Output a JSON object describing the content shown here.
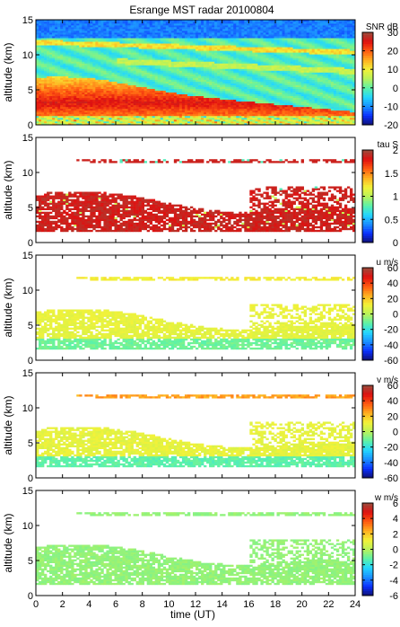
{
  "figure": {
    "title": "Esrange MST radar 20100804",
    "xlabel": "time (UT)"
  },
  "colors": {
    "colormap": [
      "#101070",
      "#0a2fff",
      "#1a8fff",
      "#22d6ff",
      "#5cf2a8",
      "#b8f25a",
      "#f2f238",
      "#ffb020",
      "#ff5a10",
      "#e01010",
      "#9a4a3a"
    ]
  },
  "chart_data": [
    {
      "type": "heatmap",
      "name": "SNR",
      "ylabel": "altitude (km)",
      "xlim": [
        0,
        24
      ],
      "ylim": [
        0,
        15
      ],
      "xticks": [
        0,
        2,
        4,
        6,
        8,
        10,
        12,
        14,
        16,
        18,
        20,
        22,
        24
      ],
      "yticks": [
        0,
        5,
        10,
        15
      ],
      "colorbar": {
        "label": "SNR dB",
        "range": [
          -20,
          30
        ],
        "ticks": [
          -20,
          -10,
          0,
          10,
          20,
          30
        ]
      }
    },
    {
      "type": "heatmap",
      "name": "tau",
      "ylabel": "altitude (km)",
      "xlim": [
        0,
        24
      ],
      "ylim": [
        0,
        15
      ],
      "xticks": [
        0,
        2,
        4,
        6,
        8,
        10,
        12,
        14,
        16,
        18,
        20,
        22,
        24
      ],
      "yticks": [
        0,
        5,
        10,
        15
      ],
      "colorbar": {
        "label": "tau S",
        "range": [
          0,
          2
        ],
        "ticks": [
          0,
          0.5,
          1,
          1.5,
          2
        ]
      }
    },
    {
      "type": "heatmap",
      "name": "u",
      "ylabel": "altitude (km)",
      "xlim": [
        0,
        24
      ],
      "ylim": [
        0,
        15
      ],
      "xticks": [
        0,
        2,
        4,
        6,
        8,
        10,
        12,
        14,
        16,
        18,
        20,
        22,
        24
      ],
      "yticks": [
        0,
        5,
        10,
        15
      ],
      "colorbar": {
        "label": "u m/s",
        "range": [
          -60,
          60
        ],
        "ticks": [
          -60,
          -40,
          -20,
          0,
          20,
          40,
          60
        ]
      }
    },
    {
      "type": "heatmap",
      "name": "v",
      "ylabel": "altitude (km)",
      "xlim": [
        0,
        24
      ],
      "ylim": [
        0,
        15
      ],
      "xticks": [
        0,
        2,
        4,
        6,
        8,
        10,
        12,
        14,
        16,
        18,
        20,
        22,
        24
      ],
      "yticks": [
        0,
        5,
        10,
        15
      ],
      "colorbar": {
        "label": "v m/s",
        "range": [
          -60,
          60
        ],
        "ticks": [
          -60,
          -40,
          -20,
          0,
          20,
          40,
          60
        ]
      }
    },
    {
      "type": "heatmap",
      "name": "w",
      "ylabel": "altitude (km)",
      "xlim": [
        0,
        24
      ],
      "ylim": [
        0,
        15
      ],
      "xticks": [
        0,
        2,
        4,
        6,
        8,
        10,
        12,
        14,
        16,
        18,
        20,
        22,
        24
      ],
      "yticks": [
        0,
        5,
        10,
        15
      ],
      "colorbar": {
        "label": "w m/s",
        "range": [
          -6,
          6
        ],
        "ticks": [
          -6,
          -4,
          -2,
          0,
          2,
          4,
          6
        ]
      }
    }
  ]
}
